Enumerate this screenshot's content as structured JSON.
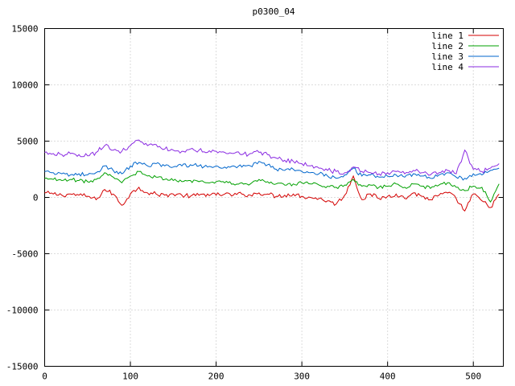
{
  "chart_data": {
    "type": "line",
    "title": "p0300_04",
    "xlabel": "",
    "ylabel": "",
    "xlim": [
      0,
      535
    ],
    "ylim": [
      -15000,
      15000
    ],
    "x_ticks": [
      0,
      100,
      200,
      300,
      400,
      500
    ],
    "y_ticks": [
      -15000,
      -10000,
      -5000,
      0,
      5000,
      10000,
      15000
    ],
    "grid": true,
    "legend_position": "top-right",
    "x_step": 10,
    "colors": {
      "grid": "#b8b8b8",
      "border": "#000000",
      "background": "#ffffff",
      "text": "#000000"
    },
    "series": [
      {
        "name": "line 1",
        "color": "#d40000",
        "noise": 200,
        "values": [
          400,
          300,
          200,
          300,
          200,
          100,
          -200,
          700,
          300,
          -700,
          300,
          900,
          400,
          300,
          200,
          300,
          200,
          100,
          200,
          300,
          200,
          300,
          200,
          300,
          200,
          400,
          300,
          100,
          200,
          300,
          100,
          0,
          -100,
          -300,
          -600,
          200,
          1900,
          -200,
          300,
          -100,
          100,
          300,
          -100,
          400,
          100,
          -200,
          200,
          400,
          -100,
          -1200,
          300,
          -300,
          -900,
          300
        ]
      },
      {
        "name": "line 2",
        "color": "#00a000",
        "noise": 160,
        "values": [
          1700,
          1600,
          1500,
          1600,
          1500,
          1400,
          1600,
          2200,
          1800,
          1300,
          1900,
          2300,
          1900,
          1800,
          1600,
          1500,
          1400,
          1500,
          1400,
          1300,
          1400,
          1300,
          1200,
          1300,
          1200,
          1600,
          1400,
          1200,
          1100,
          1200,
          1300,
          1200,
          1100,
          1000,
          900,
          1100,
          1600,
          1000,
          1100,
          900,
          1000,
          1200,
          900,
          1200,
          1000,
          800,
          1100,
          1300,
          900,
          600,
          1000,
          900,
          -400,
          1200
        ]
      },
      {
        "name": "line 3",
        "color": "#0066cc",
        "noise": 170,
        "values": [
          2300,
          2200,
          2100,
          2000,
          2100,
          2000,
          2200,
          2800,
          2400,
          2100,
          2800,
          3100,
          2800,
          3000,
          2800,
          2700,
          2800,
          2900,
          2800,
          2700,
          2800,
          2700,
          2800,
          2700,
          2800,
          3200,
          2900,
          2500,
          2400,
          2500,
          2300,
          2200,
          2100,
          1900,
          1700,
          2000,
          2600,
          1900,
          2000,
          1800,
          1900,
          2000,
          1800,
          2100,
          1900,
          1700,
          2000,
          2200,
          1800,
          1700,
          2100,
          2000,
          2400,
          2600
        ]
      },
      {
        "name": "line 4",
        "color": "#8a2be2",
        "noise": 200,
        "values": [
          4000,
          3900,
          3800,
          3900,
          3800,
          3700,
          4000,
          4600,
          4200,
          4100,
          4600,
          5100,
          4600,
          4700,
          4300,
          4200,
          4100,
          4300,
          4200,
          4000,
          4100,
          4000,
          3900,
          3800,
          3900,
          4000,
          3800,
          3500,
          3300,
          3200,
          3000,
          2800,
          2600,
          2400,
          2300,
          2200,
          2700,
          2300,
          2200,
          2100,
          2200,
          2300,
          2100,
          2400,
          2200,
          2000,
          2200,
          2400,
          2100,
          4200,
          2500,
          2300,
          2600,
          3000
        ]
      }
    ]
  }
}
